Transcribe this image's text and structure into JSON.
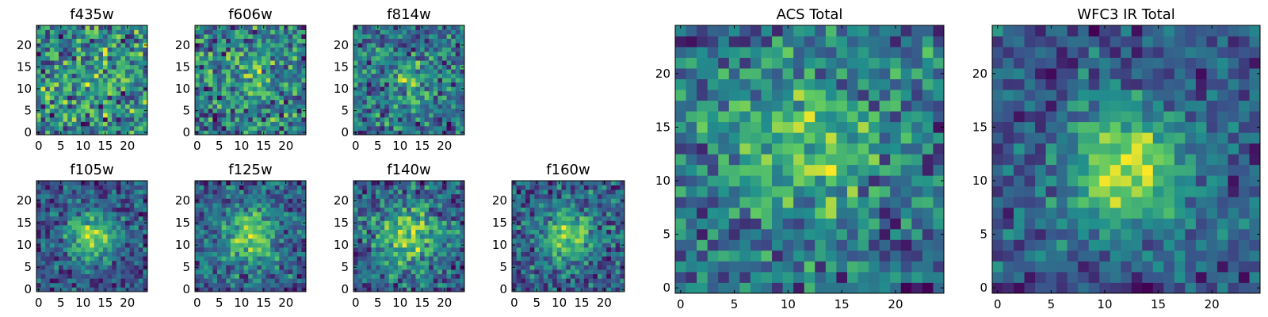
{
  "chart_data": [
    {
      "type": "heatmap",
      "title": "f435w",
      "grid_size": 25,
      "xticks": [
        "0",
        "5",
        "10",
        "15",
        "20"
      ],
      "yticks": [
        "0",
        "5",
        "10",
        "15",
        "20"
      ],
      "xlim": [
        -0.5,
        24.5
      ],
      "ylim": [
        -0.5,
        24.5
      ],
      "peak": [
        12,
        12
      ],
      "blob_strength": 0.05,
      "blob_sigma": 5,
      "noise": 0.55,
      "seed": 11
    },
    {
      "type": "heatmap",
      "title": "f606w",
      "grid_size": 25,
      "xticks": [
        "0",
        "5",
        "10",
        "15",
        "20"
      ],
      "yticks": [
        "0",
        "5",
        "10",
        "15",
        "20"
      ],
      "xlim": [
        -0.5,
        24.5
      ],
      "ylim": [
        -0.5,
        24.5
      ],
      "peak": [
        12,
        12
      ],
      "blob_strength": 0.15,
      "blob_sigma": 5,
      "noise": 0.45,
      "seed": 23
    },
    {
      "type": "heatmap",
      "title": "f814w",
      "grid_size": 25,
      "xticks": [
        "0",
        "5",
        "10",
        "15",
        "20"
      ],
      "yticks": [
        "0",
        "5",
        "10",
        "15",
        "20"
      ],
      "xlim": [
        -0.5,
        24.5
      ],
      "ylim": [
        -0.5,
        24.5
      ],
      "peak": [
        12,
        12
      ],
      "blob_strength": 0.3,
      "blob_sigma": 3.5,
      "noise": 0.45,
      "seed": 37
    },
    {
      "type": "heatmap",
      "title": "f105w",
      "grid_size": 25,
      "xticks": [
        "0",
        "5",
        "10",
        "15",
        "20"
      ],
      "yticks": [
        "0",
        "5",
        "10",
        "15",
        "20"
      ],
      "xlim": [
        -0.5,
        24.5
      ],
      "ylim": [
        -0.5,
        24.5
      ],
      "peak": [
        12,
        12
      ],
      "blob_strength": 0.5,
      "blob_sigma": 4,
      "noise": 0.3,
      "seed": 41
    },
    {
      "type": "heatmap",
      "title": "f125w",
      "grid_size": 25,
      "xticks": [
        "0",
        "5",
        "10",
        "15",
        "20"
      ],
      "yticks": [
        "0",
        "5",
        "10",
        "15",
        "20"
      ],
      "xlim": [
        -0.5,
        24.5
      ],
      "ylim": [
        -0.5,
        24.5
      ],
      "peak": [
        12,
        12
      ],
      "blob_strength": 0.45,
      "blob_sigma": 4.5,
      "noise": 0.32,
      "seed": 53
    },
    {
      "type": "heatmap",
      "title": "f140w",
      "grid_size": 25,
      "xticks": [
        "0",
        "5",
        "10",
        "15",
        "20"
      ],
      "yticks": [
        "0",
        "5",
        "10",
        "15",
        "20"
      ],
      "xlim": [
        -0.5,
        24.5
      ],
      "ylim": [
        -0.5,
        24.5
      ],
      "peak": [
        12,
        12
      ],
      "blob_strength": 0.45,
      "blob_sigma": 5,
      "noise": 0.35,
      "seed": 67
    },
    {
      "type": "heatmap",
      "title": "f160w",
      "grid_size": 25,
      "xticks": [
        "0",
        "5",
        "10",
        "15",
        "20"
      ],
      "yticks": [
        "0",
        "5",
        "10",
        "15",
        "20"
      ],
      "xlim": [
        -0.5,
        24.5
      ],
      "ylim": [
        -0.5,
        24.5
      ],
      "peak": [
        12,
        12
      ],
      "blob_strength": 0.5,
      "blob_sigma": 4,
      "noise": 0.35,
      "seed": 79
    },
    {
      "type": "heatmap",
      "title": "ACS Total",
      "grid_size": 25,
      "xticks": [
        "0",
        "5",
        "10",
        "15",
        "20"
      ],
      "yticks": [
        "0",
        "5",
        "10",
        "15",
        "20"
      ],
      "xlim": [
        -0.5,
        24.5
      ],
      "ylim": [
        -0.5,
        24.5
      ],
      "peak": [
        11,
        13
      ],
      "blob_strength": 0.35,
      "blob_sigma": 5,
      "noise": 0.4,
      "seed": 83
    },
    {
      "type": "heatmap",
      "title": "WFC3 IR Total",
      "grid_size": 25,
      "xticks": [
        "0",
        "5",
        "10",
        "15",
        "20"
      ],
      "yticks": [
        "0",
        "5",
        "10",
        "15",
        "20"
      ],
      "xlim": [
        -0.5,
        24.5
      ],
      "ylim": [
        -0.5,
        24.5
      ],
      "peak": [
        12,
        11
      ],
      "blob_strength": 0.55,
      "blob_sigma": 4,
      "noise": 0.25,
      "seed": 97
    }
  ],
  "colormap": [
    "#440154",
    "#3b528b",
    "#21908d",
    "#5dc963",
    "#fde725"
  ]
}
